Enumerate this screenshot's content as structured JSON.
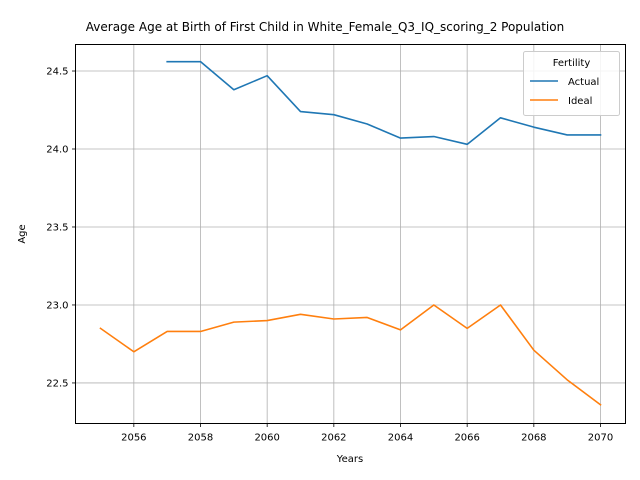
{
  "chart_data": {
    "type": "line",
    "title": "Average Age at Birth of First Child in White_Female_Q3_IQ_scoring_2 Population",
    "xlabel": "Years",
    "ylabel": "Age",
    "xlim": [
      2054.25,
      2070.75
    ],
    "ylim": [
      22.24,
      24.67
    ],
    "x_ticks": [
      2056,
      2058,
      2060,
      2062,
      2064,
      2066,
      2068,
      2070
    ],
    "y_ticks": [
      22.5,
      23.0,
      23.5,
      24.0,
      24.5
    ],
    "y_tick_labels": [
      "22.5",
      "23.0",
      "23.5",
      "24.0",
      "24.5"
    ],
    "grid": true,
    "legend": {
      "title": "Fertility",
      "position": "top-right"
    },
    "series": [
      {
        "name": "Actual",
        "color": "#1f77b4",
        "x": [
          2057,
          2058,
          2059,
          2060,
          2061,
          2062,
          2063,
          2064,
          2065,
          2066,
          2067,
          2068,
          2069,
          2070
        ],
        "values": [
          24.56,
          24.56,
          24.38,
          24.47,
          24.24,
          24.22,
          24.16,
          24.07,
          24.08,
          24.03,
          24.2,
          24.14,
          24.09,
          24.09
        ]
      },
      {
        "name": "Ideal",
        "color": "#ff7f0e",
        "x": [
          2055,
          2056,
          2057,
          2058,
          2059,
          2060,
          2061,
          2062,
          2063,
          2064,
          2065,
          2066,
          2067,
          2068,
          2069,
          2070
        ],
        "values": [
          22.85,
          22.7,
          22.83,
          22.83,
          22.89,
          22.9,
          22.94,
          22.91,
          22.92,
          22.84,
          23.0,
          22.85,
          23.0,
          22.71,
          22.52,
          22.36
        ]
      }
    ]
  }
}
